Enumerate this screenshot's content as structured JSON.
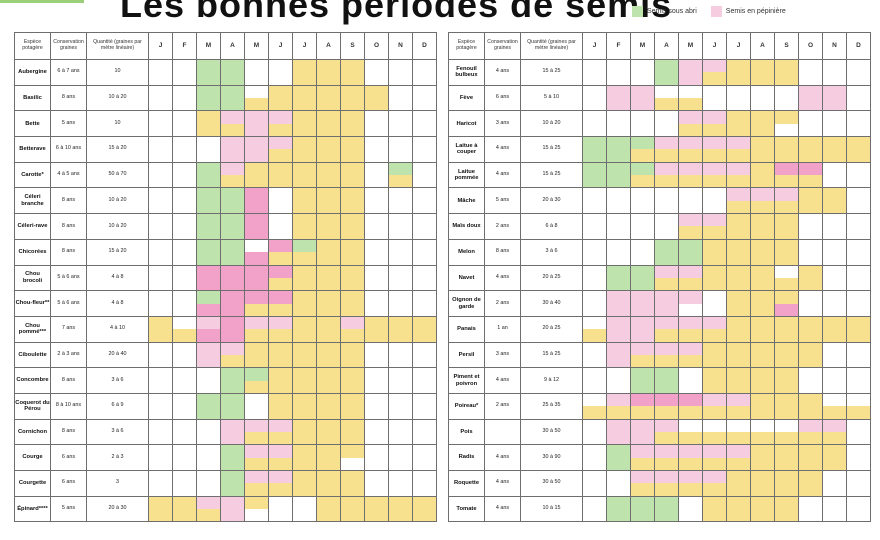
{
  "title": "Les bonnes périodes de semis",
  "colors": {
    "sous_abri": "#bfe3ad",
    "pepiniere": "#f6cde0",
    "pleine_terre": "#f7e18f",
    "pink_strong": "#f2a2c9",
    "white": "#ffffff"
  },
  "legend": [
    {
      "label": "Semis sous abri",
      "color": "#bfe3ad"
    },
    {
      "label": "Semis en pépinière",
      "color": "#f6cde0"
    }
  ],
  "headers": {
    "species": "Espèce potagère",
    "conservation": "Conservation graines",
    "quantity": "Quantité (graines par mètre linéaire)",
    "months": [
      "J",
      "F",
      "M",
      "A",
      "M",
      "J",
      "J",
      "A",
      "S",
      "O",
      "N",
      "D"
    ]
  },
  "chart_data": {
    "type": "table",
    "legend_codes": {
      "W": "aucun semis",
      "G": "semis sous abri",
      "P": "semis en pépinière",
      "Y": "semis en pleine terre",
      "Q": "semis en pépinière (rose foncé)"
    },
    "tables": [
      {
        "rows": [
          {
            "name": "Aubergine",
            "cons": "6 à 7 ans",
            "qty": "10",
            "top": "WWGGWWYYYWWW",
            "bot": "WWGGWWYYYWWW"
          },
          {
            "name": "Basilic",
            "cons": "8 ans",
            "qty": "10 à 20",
            "top": "WWGGWYYYYYWW",
            "bot": "WWGGYYYYYYWW"
          },
          {
            "name": "Bette",
            "cons": "5 ans",
            "qty": "10",
            "top": "WWYPPPYYYWWW",
            "bot": "WWYYPYYYYWWW"
          },
          {
            "name": "Betterave",
            "cons": "6 à 10 ans",
            "qty": "15 à 20",
            "top": "WWWPPPYYYWWW",
            "bot": "WWWPPYYYYWWW"
          },
          {
            "name": "Carotte*",
            "cons": "4 à 5 ans",
            "qty": "50 à 70",
            "top": "WWGPYYYYYWGW",
            "bot": "WWGYYYYYYWYW"
          },
          {
            "name": "Céleri branche",
            "cons": "8 ans",
            "qty": "10 à 20",
            "top": "WWGGQWYYYWWW",
            "bot": "WWGGQWYYYWWW"
          },
          {
            "name": "Céleri-rave",
            "cons": "8 ans",
            "qty": "10 à 20",
            "top": "WWGGQWYYYWWW",
            "bot": "WWGGQWYYYWWW"
          },
          {
            "name": "Chicorées",
            "cons": "8 ans",
            "qty": "15 à 20",
            "top": "WWGGWQGYYWWW",
            "bot": "WWGGQYYYYWWW"
          },
          {
            "name": "Chou brocoli",
            "cons": "5 à 6 ans",
            "qty": "4 à 8",
            "top": "WWQQQQYYYWWW",
            "bot": "WWQQQYYYYWWW"
          },
          {
            "name": "Chou-fleur**",
            "cons": "5 à 6 ans",
            "qty": "4 à 8",
            "top": "WWGQQQYYYWWW",
            "bot": "WWQQYYYYYWWW"
          },
          {
            "name": "Chou pommé***",
            "cons": "7 ans",
            "qty": "4 à 10",
            "top": "YWPQPPYYPYYY",
            "bot": "YYQQYYYYYYYY"
          },
          {
            "name": "Ciboulette",
            "cons": "2 à 3 ans",
            "qty": "20 à 40",
            "top": "WWPPYYYYYWWW",
            "bot": "WWPYYYYYYWWW"
          },
          {
            "name": "Concombre",
            "cons": "8 ans",
            "qty": "3 à 6",
            "top": "WWWGGYYYYWWW",
            "bot": "WWWGYYYYYWWW"
          },
          {
            "name": "Coquerot du Pérou",
            "cons": "8 à 10 ans",
            "qty": "6 à 9",
            "top": "WWGGWYYYYWWW",
            "bot": "WWGGWYYYYWWW"
          },
          {
            "name": "Cornichon",
            "cons": "8 ans",
            "qty": "3 à 6",
            "top": "WWWPPPYYYWWW",
            "bot": "WWWPYYYYYWWW"
          },
          {
            "name": "Courge",
            "cons": "6 ans",
            "qty": "2 à 3",
            "top": "WWWGPPYYYWWW",
            "bot": "WWWGYYYYWWWW"
          },
          {
            "name": "Courgette",
            "cons": "6 ans",
            "qty": "3",
            "top": "WWWGPPYYYWWW",
            "bot": "WWWGYYYYYWWW"
          },
          {
            "name": "Épinard****",
            "cons": "5 ans",
            "qty": "20 à 30",
            "top": "YYPPYWWYYYYY",
            "bot": "YYYPWWWYYYYY"
          }
        ]
      },
      {
        "rows": [
          {
            "name": "Fenouil bulbeux",
            "cons": "4 ans",
            "qty": "15 à 25",
            "top": "WWWGPPYYYWWW",
            "bot": "WWWGPYYYYWWW"
          },
          {
            "name": "Fève",
            "cons": "6 ans",
            "qty": "5 à 10",
            "top": "WPPWWWWWWPPW",
            "bot": "WPPYYWWWWPPW"
          },
          {
            "name": "Haricot",
            "cons": "3 ans",
            "qty": "10 à 20",
            "top": "WWWWPPYYYWWW",
            "bot": "WWWWYYYYWWWW"
          },
          {
            "name": "Laitue à couper",
            "cons": "4 ans",
            "qty": "15 à 25",
            "top": "GGGPPPPYYYYY",
            "bot": "GGYYYYYYYYYY"
          },
          {
            "name": "Laitue pommée",
            "cons": "4 ans",
            "qty": "15 à 25",
            "top": "GGGPPPPYQQWW",
            "bot": "GGYYYYYYYYWW"
          },
          {
            "name": "Mâche",
            "cons": "5 ans",
            "qty": "20 à 30",
            "top": "WWWWWWPPPYYW",
            "bot": "WWWWWWYYYYYW"
          },
          {
            "name": "Maïs doux",
            "cons": "2 ans",
            "qty": "6 à 8",
            "top": "WWWWPPYYYWWW",
            "bot": "WWWWYYYYYWWW"
          },
          {
            "name": "Melon",
            "cons": "8 ans",
            "qty": "3 à 6",
            "top": "WWWGGYYYYWWW",
            "bot": "WWWGGYYYYWWW"
          },
          {
            "name": "Navet",
            "cons": "4 ans",
            "qty": "20 à 25",
            "top": "WGGPPYYYWYWW",
            "bot": "WGGYYYYYYYWW"
          },
          {
            "name": "Oignon de garde",
            "cons": "2 ans",
            "qty": "30 à 40",
            "top": "WPPPPWYYYWWW",
            "bot": "WPPPWWYYQWWW"
          },
          {
            "name": "Panais",
            "cons": "1 an",
            "qty": "20 à 25",
            "top": "WPPPPPYYYYYY",
            "bot": "YPPYYYYYYYYY"
          },
          {
            "name": "Persil",
            "cons": "3 ans",
            "qty": "15 à 25",
            "top": "WPPPPYYYYYWW",
            "bot": "WPYYYYYYYYWW"
          },
          {
            "name": "Piment et poivron",
            "cons": "4 ans",
            "qty": "9 à 12",
            "top": "WWGGWYYYYWWW",
            "bot": "WWGGWYYYYWWW"
          },
          {
            "name": "Poireau*",
            "cons": "2 ans",
            "qty": "25 à 35",
            "top": "WPQQQPPYYYWW",
            "bot": "YYYYYYYYYYYY"
          },
          {
            "name": "Pois",
            "cons": "",
            "qty": "30 à 50",
            "top": "WPPPWWWWWPPW",
            "bot": "WPPYYYYYYYYW"
          },
          {
            "name": "Radis",
            "cons": "4 ans",
            "qty": "30 à 90",
            "top": "WGPPPPPYYYYW",
            "bot": "WGYYYYYYYYYW"
          },
          {
            "name": "Roquette",
            "cons": "4 ans",
            "qty": "30 à 50",
            "top": "WWPPPPYYYYWW",
            "bot": "WWYYYYYYYYWW"
          },
          {
            "name": "Tomate",
            "cons": "4 ans",
            "qty": "10 à 15",
            "top": "WGGGWYYYYWWW",
            "bot": "WGGGWYYYYWWW"
          }
        ]
      }
    ]
  }
}
